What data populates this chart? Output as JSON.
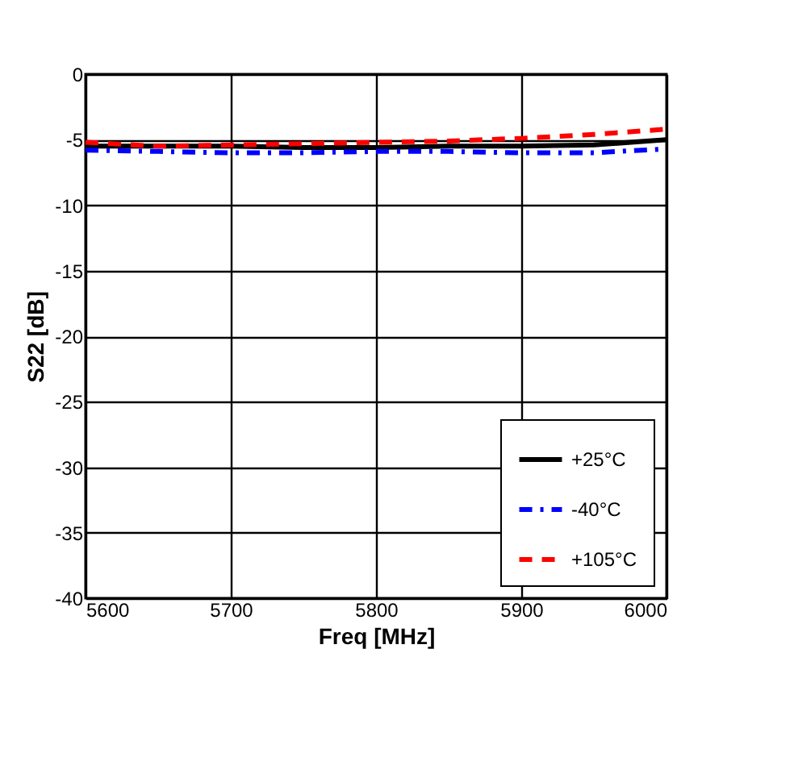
{
  "chart_data": {
    "type": "line",
    "xlabel": "Freq [MHz]",
    "ylabel": "S22 [dB]",
    "x": [
      5600,
      5650,
      5700,
      5750,
      5800,
      5850,
      5900,
      5950,
      6000
    ],
    "series": [
      {
        "name": "+25°C",
        "color": "#000000",
        "line_style": "solid",
        "values": [
          -5.5,
          -5.5,
          -5.5,
          -5.6,
          -5.6,
          -5.5,
          -5.5,
          -5.4,
          -5.0
        ]
      },
      {
        "name": "-40°C",
        "color": "#0000ff",
        "line_style": "dashdot",
        "values": [
          -5.8,
          -5.9,
          -6.0,
          -6.0,
          -5.9,
          -5.9,
          -6.0,
          -6.0,
          -5.7
        ]
      },
      {
        "name": "+105°C",
        "color": "#ff0000",
        "line_style": "dashed",
        "values": [
          -5.2,
          -5.5,
          -5.4,
          -5.3,
          -5.2,
          -5.1,
          -4.9,
          -4.6,
          -4.2
        ]
      }
    ],
    "xlim": [
      5600,
      6000
    ],
    "xticks": [
      5600,
      5700,
      5800,
      5900,
      6000
    ],
    "ylim": [
      -40,
      0
    ],
    "yticks": [
      -40,
      -35,
      -30,
      -25,
      -20,
      -15,
      -10,
      -5,
      0
    ],
    "grid": true,
    "legend": "bottom right"
  }
}
